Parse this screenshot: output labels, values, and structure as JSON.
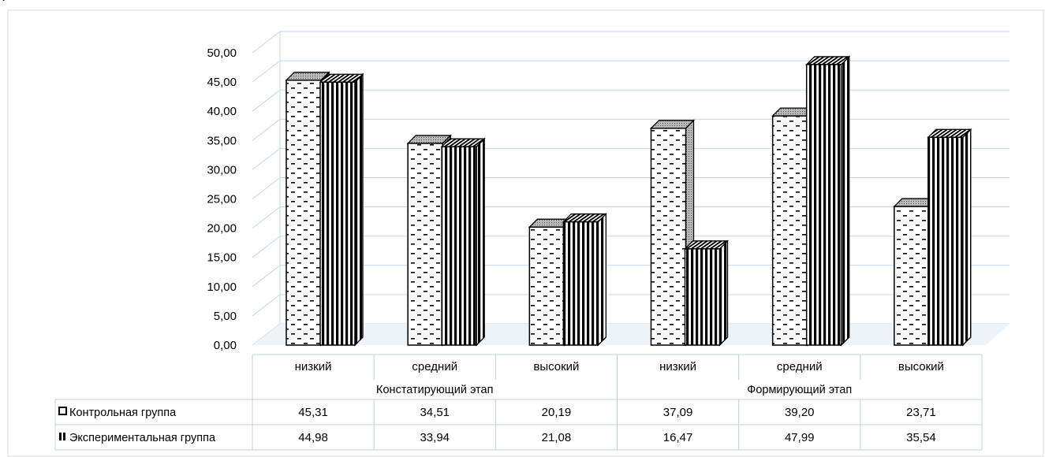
{
  "chart_data": {
    "type": "bar",
    "title": "",
    "xlabel": "",
    "ylabel": "",
    "ylim": [
      0,
      50
    ],
    "y_ticks": [
      "0,00",
      "5,00",
      "10,00",
      "15,00",
      "20,00",
      "25,00",
      "30,00",
      "35,00",
      "40,00",
      "45,00",
      "50,00"
    ],
    "grid": true,
    "legend_placement": "data-table",
    "groups": [
      {
        "label": "Констатирующий этап",
        "categories": [
          "низкий",
          "средний",
          "высокий"
        ]
      },
      {
        "label": "Формирующий этап",
        "categories": [
          "низкий",
          "средний",
          "высокий"
        ]
      }
    ],
    "categories": [
      "низкий",
      "средний",
      "высокий",
      "низкий",
      "средний",
      "высокий"
    ],
    "series": [
      {
        "name": "Контрольная группа",
        "pattern": "dashed-horizontal",
        "values": [
          45.31,
          34.51,
          20.19,
          37.09,
          39.2,
          23.71
        ],
        "labels": [
          "45,31",
          "34,51",
          "20,19",
          "37,09",
          "39,20",
          "23,71"
        ]
      },
      {
        "name": "Экспериментальная группа",
        "pattern": "vertical-stripes",
        "values": [
          44.98,
          33.94,
          21.08,
          16.47,
          47.99,
          35.54
        ],
        "labels": [
          "44,98",
          "33,94",
          "21,08",
          "16,47",
          "47,99",
          "35,54"
        ]
      }
    ]
  },
  "colors": {
    "frame": "#d9d9d9",
    "gridline": "#c5d6ea",
    "table_border": "#bfcfe0",
    "bar_edge": "#000000",
    "bar_fill": "#ffffff",
    "top_face": "#a8a8a8"
  },
  "page": {
    "top_mark": "г"
  }
}
